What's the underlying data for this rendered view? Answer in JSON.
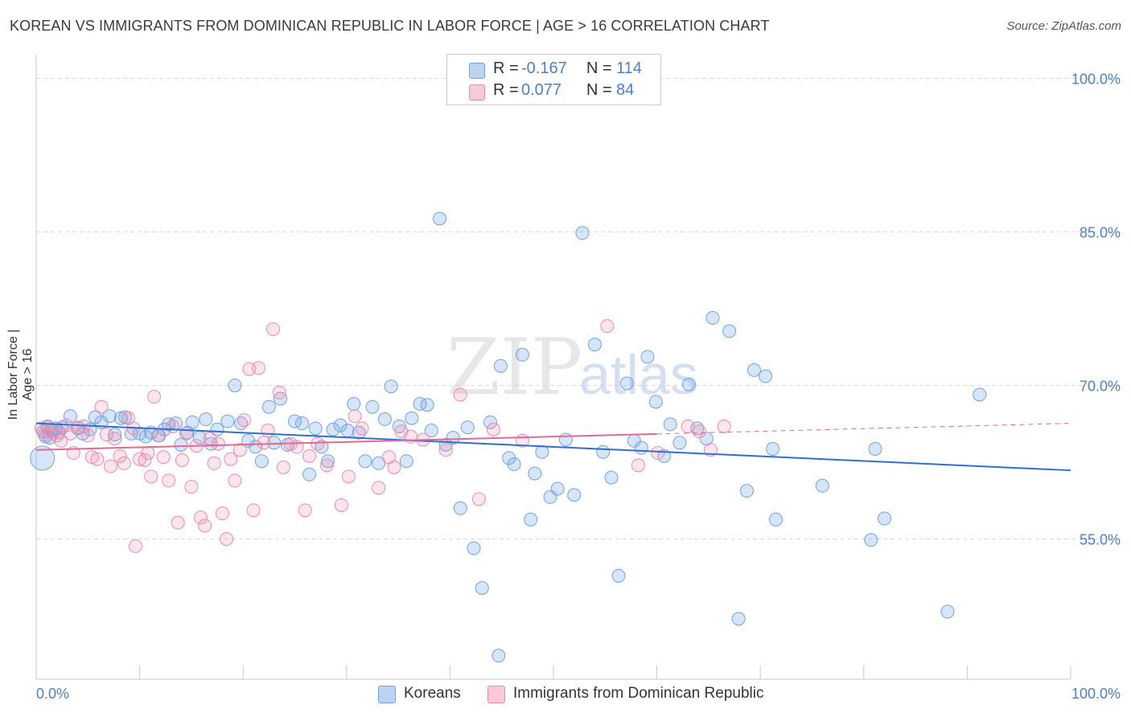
{
  "title": "KOREAN VS IMMIGRANTS FROM DOMINICAN REPUBLIC IN LABOR FORCE | AGE > 16 CORRELATION CHART",
  "source": "Source: ZipAtlas.com",
  "colors": {
    "blue": "#6fa3e6",
    "blue_line": "#2f6fce",
    "pink": "#f08aaa",
    "pink_line": "#e26a93",
    "axis_text": "#4a7fd1",
    "grid": "#d9d9d9"
  },
  "watermark": {
    "zip": "ZIP",
    "atlas": "atlas"
  },
  "legend": {
    "rows": [
      {
        "r_label": "R =",
        "r_value": "-0.167",
        "n_label": "N =",
        "n_value": "114"
      },
      {
        "r_label": "R =",
        "r_value": "0.077",
        "n_label": "N =",
        "n_value": "84"
      }
    ]
  },
  "bottom_legend": [
    "Koreans",
    "Immigrants from Dominican Republic"
  ],
  "chart_data": {
    "type": "scatter",
    "title": "KOREAN VS IMMIGRANTS FROM DOMINICAN REPUBLIC IN LABOR FORCE | AGE > 16 CORRELATION CHART",
    "xlabel": "",
    "ylabel": "In Labor Force | Age > 16",
    "xlim": [
      0,
      100
    ],
    "ylim": [
      38.5,
      102
    ],
    "x_tick_labels": [
      "0.0%",
      "100.0%"
    ],
    "y_ticks": [
      55,
      70,
      85,
      100
    ],
    "y_tick_labels": [
      "55.0%",
      "70.0%",
      "85.0%",
      "100.0%"
    ],
    "grid": true,
    "legend_position": "top-center",
    "series": [
      {
        "name": "Koreans",
        "color": "#6fa3e6",
        "trend": {
          "x": [
            0,
            100
          ],
          "y": [
            66.3,
            61.7
          ],
          "dashed_from": null
        },
        "points": [
          [
            0.6,
            62.9
          ],
          [
            0.7,
            65.5
          ],
          [
            0.9,
            65.0
          ],
          [
            1.1,
            65.9
          ],
          [
            1.3,
            64.9
          ],
          [
            1.5,
            65.6
          ],
          [
            1.9,
            65.8
          ],
          [
            2.2,
            65.4
          ],
          [
            2.5,
            65.9
          ],
          [
            3.3,
            67.0
          ],
          [
            4.0,
            65.8
          ],
          [
            4.5,
            65.3
          ],
          [
            5.2,
            65.7
          ],
          [
            5.7,
            66.9
          ],
          [
            6.3,
            66.4
          ],
          [
            7.1,
            67.0
          ],
          [
            7.6,
            65.2
          ],
          [
            8.2,
            66.8
          ],
          [
            8.6,
            66.9
          ],
          [
            9.2,
            65.3
          ],
          [
            10.0,
            65.3
          ],
          [
            10.6,
            65.0
          ],
          [
            11.1,
            65.4
          ],
          [
            11.8,
            65.1
          ],
          [
            12.4,
            65.7
          ],
          [
            12.8,
            66.2
          ],
          [
            13.5,
            66.3
          ],
          [
            14.0,
            64.2
          ],
          [
            14.6,
            65.4
          ],
          [
            15.1,
            66.4
          ],
          [
            15.8,
            64.9
          ],
          [
            16.4,
            66.7
          ],
          [
            16.9,
            64.3
          ],
          [
            17.5,
            65.7
          ],
          [
            18.5,
            66.5
          ],
          [
            19.2,
            70.0
          ],
          [
            19.8,
            66.3
          ],
          [
            20.5,
            64.6
          ],
          [
            21.2,
            64.0
          ],
          [
            21.8,
            62.6
          ],
          [
            22.5,
            67.9
          ],
          [
            23.0,
            64.4
          ],
          [
            23.6,
            68.7
          ],
          [
            24.3,
            64.2
          ],
          [
            25.0,
            66.5
          ],
          [
            25.7,
            66.3
          ],
          [
            26.4,
            61.3
          ],
          [
            27.0,
            65.8
          ],
          [
            27.6,
            64.0
          ],
          [
            28.2,
            62.6
          ],
          [
            28.7,
            65.7
          ],
          [
            29.4,
            66.1
          ],
          [
            30.1,
            65.6
          ],
          [
            30.7,
            68.2
          ],
          [
            31.2,
            65.4
          ],
          [
            31.8,
            62.6
          ],
          [
            32.5,
            67.9
          ],
          [
            33.1,
            62.4
          ],
          [
            33.7,
            66.7
          ],
          [
            34.3,
            69.9
          ],
          [
            35.1,
            66.0
          ],
          [
            35.8,
            62.6
          ],
          [
            36.3,
            66.8
          ],
          [
            37.1,
            68.2
          ],
          [
            37.8,
            68.1
          ],
          [
            38.2,
            65.6
          ],
          [
            39.0,
            86.3
          ],
          [
            39.6,
            64.2
          ],
          [
            40.3,
            64.9
          ],
          [
            41.0,
            58.0
          ],
          [
            41.7,
            65.9
          ],
          [
            42.3,
            54.1
          ],
          [
            43.1,
            50.2
          ],
          [
            43.9,
            66.4
          ],
          [
            44.7,
            43.6
          ],
          [
            44.9,
            71.9
          ],
          [
            45.7,
            62.9
          ],
          [
            46.2,
            62.3
          ],
          [
            47.0,
            73.0
          ],
          [
            47.8,
            56.9
          ],
          [
            48.2,
            61.4
          ],
          [
            48.9,
            63.5
          ],
          [
            49.7,
            59.1
          ],
          [
            50.4,
            59.9
          ],
          [
            51.2,
            64.7
          ],
          [
            52.0,
            59.3
          ],
          [
            52.8,
            84.9
          ],
          [
            54.0,
            74.0
          ],
          [
            54.8,
            63.5
          ],
          [
            55.6,
            61.0
          ],
          [
            56.3,
            51.4
          ],
          [
            57.1,
            70.2
          ],
          [
            57.8,
            64.6
          ],
          [
            58.5,
            63.9
          ],
          [
            59.1,
            72.8
          ],
          [
            59.9,
            68.4
          ],
          [
            60.7,
            63.1
          ],
          [
            61.3,
            66.2
          ],
          [
            62.2,
            64.4
          ],
          [
            63.1,
            70.1
          ],
          [
            63.9,
            65.8
          ],
          [
            64.8,
            64.8
          ],
          [
            65.4,
            76.6
          ],
          [
            67.0,
            75.3
          ],
          [
            67.9,
            47.2
          ],
          [
            68.7,
            59.7
          ],
          [
            69.4,
            71.5
          ],
          [
            70.5,
            70.9
          ],
          [
            71.2,
            63.8
          ],
          [
            71.5,
            56.9
          ],
          [
            76.0,
            60.2
          ],
          [
            80.7,
            54.9
          ],
          [
            81.1,
            63.8
          ],
          [
            82.0,
            57.0
          ],
          [
            88.1,
            47.9
          ],
          [
            91.2,
            69.1
          ]
        ]
      },
      {
        "name": "Immigrants from Dominican Republic",
        "color": "#f08aaa",
        "trend": {
          "x": [
            0,
            100
          ],
          "y": [
            63.7,
            66.3
          ],
          "dashed_from": 60
        },
        "points": [
          [
            0.5,
            65.8
          ],
          [
            0.8,
            65.2
          ],
          [
            1.1,
            66.0
          ],
          [
            1.6,
            65.4
          ],
          [
            2.0,
            65.1
          ],
          [
            2.4,
            64.6
          ],
          [
            2.9,
            66.1
          ],
          [
            3.3,
            65.3
          ],
          [
            3.6,
            63.4
          ],
          [
            4.1,
            65.9
          ],
          [
            4.6,
            66.0
          ],
          [
            5.0,
            65.1
          ],
          [
            5.4,
            63.0
          ],
          [
            5.9,
            62.8
          ],
          [
            6.3,
            67.9
          ],
          [
            6.8,
            65.2
          ],
          [
            7.2,
            62.1
          ],
          [
            7.6,
            64.8
          ],
          [
            8.1,
            63.1
          ],
          [
            8.5,
            62.4
          ],
          [
            8.9,
            66.8
          ],
          [
            9.4,
            65.8
          ],
          [
            9.6,
            54.3
          ],
          [
            10.0,
            62.8
          ],
          [
            10.5,
            62.7
          ],
          [
            10.8,
            63.4
          ],
          [
            11.1,
            61.1
          ],
          [
            11.4,
            68.9
          ],
          [
            11.9,
            65.1
          ],
          [
            12.3,
            63.0
          ],
          [
            12.8,
            60.7
          ],
          [
            13.2,
            66.0
          ],
          [
            13.7,
            56.6
          ],
          [
            14.1,
            62.7
          ],
          [
            14.5,
            65.3
          ],
          [
            15.0,
            60.1
          ],
          [
            15.5,
            64.1
          ],
          [
            15.9,
            57.1
          ],
          [
            16.3,
            56.3
          ],
          [
            16.8,
            64.8
          ],
          [
            17.2,
            62.4
          ],
          [
            17.6,
            64.3
          ],
          [
            18.0,
            57.5
          ],
          [
            18.4,
            55.0
          ],
          [
            18.8,
            62.8
          ],
          [
            19.2,
            60.7
          ],
          [
            19.7,
            63.7
          ],
          [
            20.1,
            66.6
          ],
          [
            20.6,
            71.6
          ],
          [
            21.0,
            57.8
          ],
          [
            21.5,
            71.7
          ],
          [
            22.0,
            64.4
          ],
          [
            22.4,
            65.6
          ],
          [
            22.9,
            75.5
          ],
          [
            23.5,
            69.3
          ],
          [
            23.9,
            62.0
          ],
          [
            24.6,
            64.3
          ],
          [
            25.2,
            64.0
          ],
          [
            26.0,
            57.8
          ],
          [
            26.4,
            63.1
          ],
          [
            27.2,
            64.3
          ],
          [
            28.1,
            62.2
          ],
          [
            29.5,
            58.3
          ],
          [
            30.2,
            61.1
          ],
          [
            30.8,
            67.0
          ],
          [
            31.5,
            65.8
          ],
          [
            33.1,
            60.0
          ],
          [
            34.1,
            63.0
          ],
          [
            34.6,
            62.0
          ],
          [
            35.3,
            65.5
          ],
          [
            36.2,
            65.0
          ],
          [
            37.4,
            64.7
          ],
          [
            39.6,
            63.7
          ],
          [
            41.0,
            69.1
          ],
          [
            42.8,
            58.9
          ],
          [
            44.2,
            65.7
          ],
          [
            47.0,
            64.6
          ],
          [
            55.2,
            75.8
          ],
          [
            58.2,
            62.2
          ],
          [
            60.1,
            63.4
          ],
          [
            63.0,
            66.0
          ],
          [
            64.1,
            65.5
          ],
          [
            65.2,
            63.7
          ],
          [
            66.5,
            66.0
          ]
        ]
      }
    ]
  }
}
